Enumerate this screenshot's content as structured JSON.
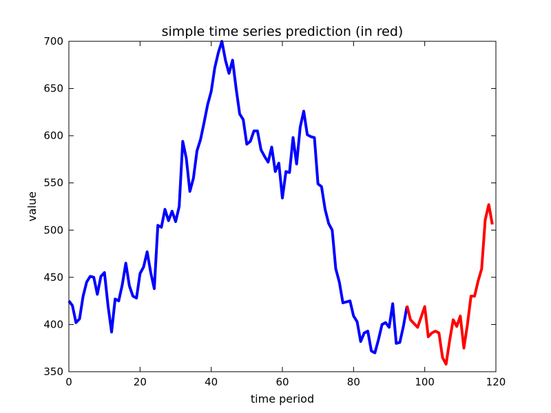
{
  "chart_data": {
    "type": "line",
    "title": "simple time series prediction (in red)",
    "xlabel": "time period",
    "ylabel": "value",
    "xlim": [
      0,
      120
    ],
    "ylim": [
      350,
      700
    ],
    "xticks": [
      0,
      20,
      40,
      60,
      80,
      100,
      120
    ],
    "yticks": [
      350,
      400,
      450,
      500,
      550,
      600,
      650,
      700
    ],
    "grid": false,
    "legend": "none",
    "series": [
      {
        "color": "#0000ff",
        "x": [
          0,
          1,
          2,
          3,
          4,
          5,
          6,
          7,
          8,
          9,
          10,
          11,
          12,
          13,
          14,
          15,
          16,
          17,
          18,
          19,
          20,
          21,
          22,
          23,
          24,
          25,
          26,
          27,
          28,
          29,
          30,
          31,
          32,
          33,
          34,
          35,
          36,
          37,
          38,
          39,
          40,
          41,
          42,
          43,
          44,
          45,
          46,
          47,
          48,
          49,
          50,
          51,
          52,
          53,
          54,
          55,
          56,
          57,
          58,
          59,
          60,
          61,
          62,
          63,
          64,
          65,
          66,
          67,
          68,
          69,
          70,
          71,
          72,
          73,
          74,
          75,
          76,
          77,
          78,
          79,
          80,
          81,
          82,
          83,
          84,
          85,
          86,
          87,
          88,
          89,
          90,
          91,
          92,
          93,
          94,
          95
        ],
        "values": [
          425,
          420,
          402,
          406,
          430,
          445,
          451,
          450,
          432,
          451,
          455,
          420,
          392,
          427,
          425,
          442,
          465,
          441,
          430,
          428,
          454,
          461,
          477,
          455,
          438,
          505,
          503,
          522,
          510,
          520,
          509,
          525,
          594,
          576,
          541,
          555,
          584,
          596,
          614,
          633,
          647,
          672,
          688,
          700,
          680,
          666,
          680,
          650,
          623,
          617,
          591,
          594,
          605,
          605,
          585,
          578,
          572,
          588,
          562,
          571,
          534,
          562,
          561,
          598,
          570,
          609,
          626,
          601,
          599,
          598,
          549,
          546,
          522,
          507,
          500,
          459,
          445,
          423,
          424,
          425,
          409,
          403,
          382,
          391,
          393,
          372,
          370,
          384,
          400,
          402,
          397,
          422,
          380,
          381,
          398,
          419
        ]
      },
      {
        "color": "#ff0000",
        "x": [
          95,
          96,
          97,
          98,
          99,
          100,
          101,
          102,
          103,
          104,
          105,
          106,
          107,
          108,
          109,
          110,
          111,
          112,
          113,
          114,
          115,
          116,
          117,
          118,
          119
        ],
        "values": [
          420,
          405,
          401,
          397,
          408,
          419,
          387,
          391,
          393,
          391,
          365,
          358,
          383,
          405,
          398,
          409,
          375,
          400,
          430,
          430,
          446,
          459,
          511,
          527,
          506
        ]
      }
    ]
  }
}
